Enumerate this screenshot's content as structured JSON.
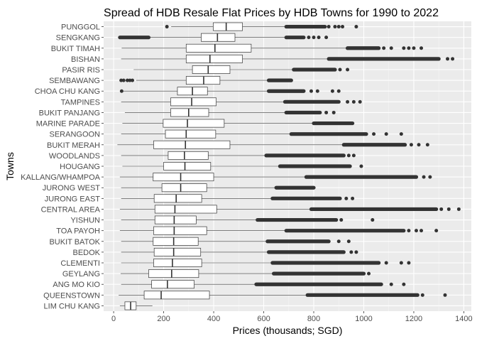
{
  "chart_data": {
    "type": "boxplot",
    "orientation": "horizontal",
    "title": "Spread of HDB Resale Flat Prices by HDB Towns for 1990 to 2022",
    "xlabel": "Prices (thousands; SGD)",
    "ylabel": "Towns",
    "xlim": [
      -40,
      1430
    ],
    "xticks": [
      0,
      200,
      400,
      600,
      800,
      1000,
      1200,
      1400
    ],
    "grid": true,
    "legend": "none",
    "colors": {
      "panel": "#ebebeb",
      "grid_major": "#ffffff",
      "grid_minor": "#f5f5f5",
      "box_fill": "#ffffff",
      "box_stroke": "#333333",
      "outlier": "#333333"
    },
    "categories": [
      "PUNGGOL",
      "SENGKANG",
      "BUKIT TIMAH",
      "BISHAN",
      "PASIR RIS",
      "SEMBAWANG",
      "CHOA CHU KANG",
      "TAMPINES",
      "BUKIT PANJANG",
      "MARINE PARADE",
      "SERANGOON",
      "BUKIT MERAH",
      "WOODLANDS",
      "HOUGANG",
      "KALLANG/WHAMPOA",
      "JURONG WEST",
      "JURONG EAST",
      "CENTRAL AREA",
      "YISHUN",
      "TOA PAYOH",
      "BUKIT BATOK",
      "BEDOK",
      "CLEMENTI",
      "GEYLANG",
      "ANG MO KIO",
      "QUEENSTOWN",
      "LIM CHU KANG"
    ],
    "boxes": [
      {
        "town": "PUNGGOL",
        "whisker_low": 230,
        "q1": 398,
        "median": 450,
        "q3": 515,
        "whisker_high": 690,
        "outliers": [
          {
            "range": [
              690,
              845
            ]
          },
          213,
          860,
          885,
          900,
          915,
          970
        ]
      },
      {
        "town": "SENGKANG",
        "whisker_low": 105,
        "q1": 350,
        "median": 415,
        "q3": 485,
        "whisker_high": 690,
        "outliers": [
          {
            "range": [
              25,
              140
            ]
          },
          {
            "range": [
              690,
              760
            ]
          },
          780,
          800,
          820,
          850
        ]
      },
      {
        "town": "BUKIT TIMAH",
        "whisker_low": 32,
        "q1": 290,
        "median": 405,
        "q3": 550,
        "whisker_high": 935,
        "outliers": [
          {
            "range": [
              935,
              1060
            ]
          },
          1080,
          1110,
          1160,
          1180,
          1200,
          1230
        ]
      },
      {
        "town": "BISHAN",
        "whisker_low": 30,
        "q1": 290,
        "median": 385,
        "q3": 515,
        "whisker_high": 860,
        "outliers": [
          {
            "range": [
              860,
              1300
            ]
          },
          1335,
          1355
        ]
      },
      {
        "town": "PASIR RIS",
        "whisker_low": 80,
        "q1": 315,
        "median": 378,
        "q3": 465,
        "whisker_high": 720,
        "outliers": [
          {
            "range": [
              720,
              885
            ]
          },
          905,
          935
        ]
      },
      {
        "town": "SEMBAWANG",
        "whisker_low": 90,
        "q1": 290,
        "median": 360,
        "q3": 425,
        "whisker_high": 620,
        "outliers": [
          {
            "range": [
              620,
              710
            ]
          },
          30,
          40,
          55,
          65,
          75
        ]
      },
      {
        "town": "CHOA CHU KANG",
        "whisker_low": 32,
        "q1": 255,
        "median": 315,
        "q3": 375,
        "whisker_high": 620,
        "outliers": [
          {
            "range": [
              620,
              760
            ]
          },
          32,
          790,
          815,
          875,
          900
        ]
      },
      {
        "town": "TAMPINES",
        "whisker_low": 30,
        "q1": 228,
        "median": 312,
        "q3": 410,
        "whisker_high": 685,
        "outliers": [
          {
            "range": [
              685,
              900
            ]
          },
          935,
          960,
          985
        ]
      },
      {
        "town": "BUKIT PANJANG",
        "whisker_low": 45,
        "q1": 228,
        "median": 300,
        "q3": 380,
        "whisker_high": 690,
        "outliers": [
          {
            "range": [
              690,
              825
            ]
          },
          850,
          880
        ]
      },
      {
        "town": "MARINE PARADE",
        "whisker_low": 35,
        "q1": 198,
        "median": 295,
        "q3": 442,
        "whisker_high": 800,
        "outliers": [
          {
            "range": [
              800,
              955
            ]
          }
        ]
      },
      {
        "town": "SERANGOON",
        "whisker_low": 30,
        "q1": 207,
        "median": 290,
        "q3": 408,
        "whisker_high": 710,
        "outliers": [
          {
            "range": [
              710,
              1010
            ]
          },
          1040,
          1090,
          1150
        ]
      },
      {
        "town": "BUKIT MERAH",
        "whisker_low": 15,
        "q1": 160,
        "median": 287,
        "q3": 465,
        "whisker_high": 920,
        "outliers": [
          {
            "range": [
              920,
              1165
            ]
          },
          1190,
          1220,
          1255
        ]
      },
      {
        "town": "WOODLANDS",
        "whisker_low": 30,
        "q1": 218,
        "median": 283,
        "q3": 378,
        "whisker_high": 610,
        "outliers": [
          {
            "range": [
              610,
              920
            ]
          },
          940,
          960
        ]
      },
      {
        "town": "HOUGANG",
        "whisker_low": 35,
        "q1": 200,
        "median": 285,
        "q3": 388,
        "whisker_high": 665,
        "outliers": [
          {
            "range": [
              665,
              945
            ]
          },
          990
        ]
      },
      {
        "town": "KALLANG/WHAMPOA",
        "whisker_low": 25,
        "q1": 158,
        "median": 268,
        "q3": 400,
        "whisker_high": 770,
        "outliers": [
          {
            "range": [
              770,
              1210
            ]
          },
          1240,
          1265
        ]
      },
      {
        "town": "JURONG WEST",
        "whisker_low": 30,
        "q1": 193,
        "median": 268,
        "q3": 372,
        "whisker_high": 650,
        "outliers": [
          {
            "range": [
              650,
              800
            ]
          }
        ]
      },
      {
        "town": "JURONG EAST",
        "whisker_low": 30,
        "q1": 162,
        "median": 250,
        "q3": 352,
        "whisker_high": 635,
        "outliers": [
          {
            "range": [
              635,
              905
            ]
          },
          930,
          955
        ]
      },
      {
        "town": "CENTRAL AREA",
        "whisker_low": 25,
        "q1": 165,
        "median": 245,
        "q3": 412,
        "whisker_high": 790,
        "outliers": [
          {
            "range": [
              790,
              1290
            ]
          },
          1310,
          1340,
          1380
        ]
      },
      {
        "town": "YISHUN",
        "whisker_low": 30,
        "q1": 165,
        "median": 242,
        "q3": 330,
        "whisker_high": 575,
        "outliers": [
          {
            "range": [
              575,
              890
            ]
          },
          910,
          1035
        ]
      },
      {
        "town": "TOA PAYOH",
        "whisker_low": 25,
        "q1": 160,
        "median": 242,
        "q3": 372,
        "whisker_high": 690,
        "outliers": [
          {
            "range": [
              690,
              1160
            ]
          },
          1180,
          1210,
          1230,
          1290
        ]
      },
      {
        "town": "BUKIT BATOK",
        "whisker_low": 30,
        "q1": 158,
        "median": 240,
        "q3": 338,
        "whisker_high": 615,
        "outliers": [
          {
            "range": [
              615,
              860
            ]
          },
          900,
          940
        ]
      },
      {
        "town": "BEDOK",
        "whisker_low": 30,
        "q1": 162,
        "median": 240,
        "q3": 348,
        "whisker_high": 620,
        "outliers": [
          {
            "range": [
              620,
              920
            ]
          },
          950,
          970
        ]
      },
      {
        "town": "CLEMENTI",
        "whisker_low": 30,
        "q1": 160,
        "median": 235,
        "q3": 352,
        "whisker_high": 635,
        "outliers": [
          {
            "range": [
              635,
              1060
            ]
          },
          1090,
          1150,
          1180
        ]
      },
      {
        "town": "GEYLANG",
        "whisker_low": 28,
        "q1": 140,
        "median": 232,
        "q3": 340,
        "whisker_high": 640,
        "outliers": [
          {
            "range": [
              640,
              1000
            ]
          },
          1020
        ]
      },
      {
        "town": "ANG MO KIO",
        "whisker_low": 30,
        "q1": 152,
        "median": 215,
        "q3": 322,
        "whisker_high": 570,
        "outliers": [
          {
            "range": [
              570,
              1070
            ]
          },
          1110,
          1160
        ]
      },
      {
        "town": "QUEENSTOWN",
        "whisker_low": 20,
        "q1": 122,
        "median": 190,
        "q3": 383,
        "whisker_high": 775,
        "outliers": [
          {
            "range": [
              775,
              1215
            ]
          },
          1235,
          1325
        ]
      },
      {
        "town": "LIM CHU KANG",
        "whisker_low": 25,
        "q1": 45,
        "median": 68,
        "q3": 90,
        "whisker_high": 155,
        "outliers": []
      }
    ]
  }
}
